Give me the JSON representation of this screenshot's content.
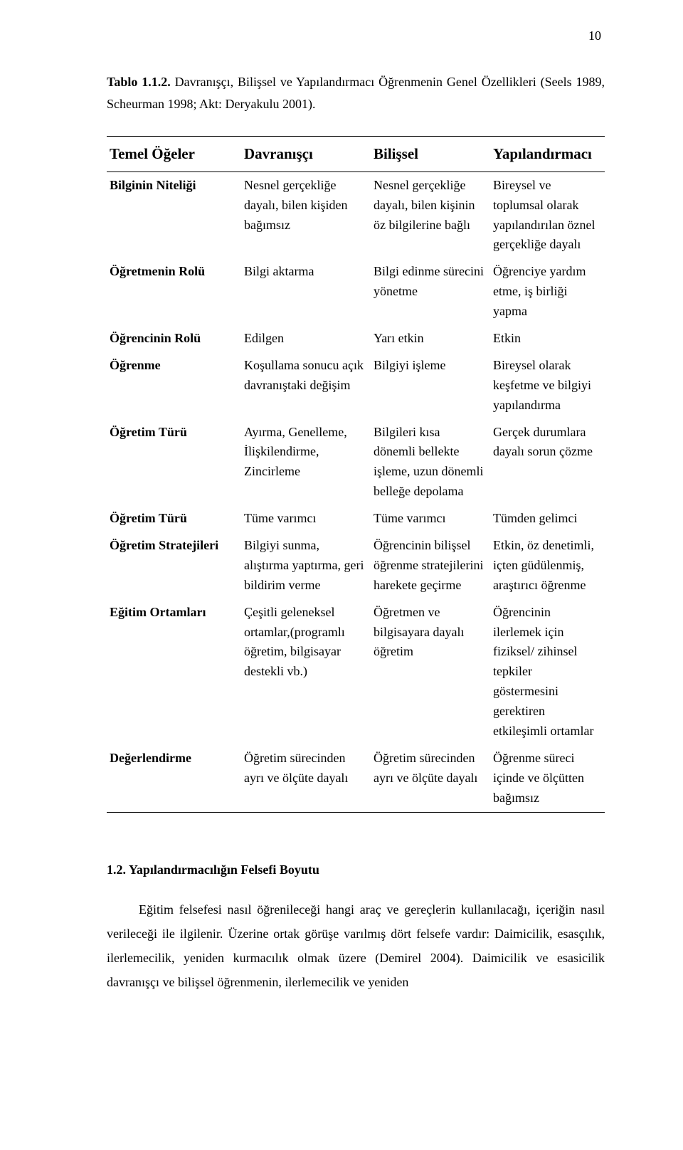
{
  "page_number": "10",
  "caption_bold": "Tablo 1.1.2.",
  "caption_rest": " Davranışçı, Bilişsel ve Yapılandırmacı Öğrenmenin Genel Özellikleri (Seels 1989, Scheurman 1998; Akt: Deryakulu 2001).",
  "headers": [
    "Temel Öğeler",
    "Davranışçı",
    "Bilişsel",
    "Yapılandırmacı"
  ],
  "rows": [
    {
      "label": "Bilginin Niteliği",
      "c2": "Nesnel gerçekliğe dayalı, bilen kişiden bağımsız",
      "c3": "Nesnel gerçekliğe dayalı, bilen kişinin öz bilgilerine bağlı",
      "c4": "Bireysel ve toplumsal olarak yapılandırılan öznel gerçekliğe dayalı"
    },
    {
      "label": "Öğretmenin Rolü",
      "c2": "Bilgi aktarma",
      "c3": "Bilgi edinme sürecini yönetme",
      "c4": "Öğrenciye yardım etme, iş birliği yapma"
    },
    {
      "label": "Öğrencinin Rolü",
      "c2": "Edilgen",
      "c3": "Yarı etkin",
      "c4": "Etkin"
    },
    {
      "label": "Öğrenme",
      "c2": "Koşullama sonucu açık davranıştaki değişim",
      "c3": "Bilgiyi işleme",
      "c4": "Bireysel olarak keşfetme ve bilgiyi yapılandırma"
    },
    {
      "label": "Öğretim Türü",
      "c2": "Ayırma, Genelleme, İlişkilendirme, Zincirleme",
      "c3": "Bilgileri kısa dönemli bellekte işleme, uzun dönemli belleğe depolama",
      "c4": "Gerçek durumlara dayalı sorun çözme"
    },
    {
      "label": "Öğretim Türü",
      "c2": "Tüme varımcı",
      "c3": "Tüme varımcı",
      "c4": "Tümden gelimci"
    },
    {
      "label": "Öğretim Stratejileri",
      "c2": "Bilgiyi sunma, alıştırma yaptırma, geri bildirim verme",
      "c3": "Öğrencinin bilişsel öğrenme stratejilerini harekete geçirme",
      "c4": "Etkin, öz denetimli, içten güdülenmiş, araştırıcı öğrenme"
    },
    {
      "label": "Eğitim Ortamları",
      "c2": "Çeşitli geleneksel ortamlar,(programlı öğretim, bilgisayar destekli vb.)",
      "c3": "Öğretmen ve bilgisayara dayalı öğretim",
      "c4": "Öğrencinin ilerlemek için fiziksel/ zihinsel tepkiler göstermesini gerektiren etkileşimli ortamlar"
    },
    {
      "label": "Değerlendirme",
      "c2": "Öğretim sürecinden ayrı ve ölçüte dayalı",
      "c3": "Öğretim sürecinden ayrı ve ölçüte dayalı",
      "c4": "Öğrenme süreci içinde ve ölçütten bağımsız"
    }
  ],
  "section_heading": "1.2. Yapılandırmacılığın Felsefi Boyutu",
  "paragraph": "Eğitim felsefesi nasıl öğrenileceği hangi araç ve gereçlerin kullanılacağı, içeriğin nasıl verileceği ile ilgilenir. Üzerine ortak görüşe varılmış dört felsefe vardır: Daimicilik, esasçılık, ilerlemecilik, yeniden kurmacılık olmak üzere (Demirel 2004). Daimicilik ve esasicilik davranışçı ve bilişsel öğrenmenin, ilerlemecilik ve yeniden"
}
